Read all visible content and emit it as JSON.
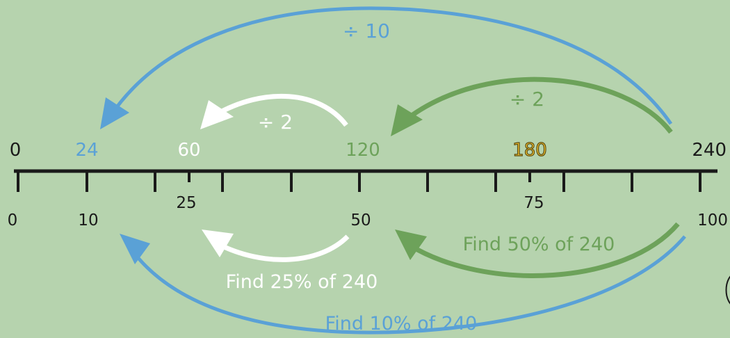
{
  "colors": {
    "background": "#b6d3ae",
    "blue": "#5aa1d6",
    "green": "#6da25a",
    "white": "#ffffff",
    "black": "#1a1a1a",
    "highlight_fill": "#f1c232",
    "highlight_outline": "#5a4a10"
  },
  "top_scale": {
    "start": "0",
    "a": "24",
    "b": "60",
    "c": "120",
    "d": "180",
    "end": "240"
  },
  "bottom_scale": {
    "start": "0",
    "a": "10",
    "b": "25",
    "c": "50",
    "d": "75",
    "end": "100"
  },
  "operations": {
    "div_10": "÷ 10",
    "div_2_white": "÷ 2",
    "div_2_green": "÷ 2"
  },
  "phrases": {
    "find_50": "Find 50% of 240",
    "find_25": "Find 25% of 240",
    "find_10": "Find 10% of 240"
  }
}
